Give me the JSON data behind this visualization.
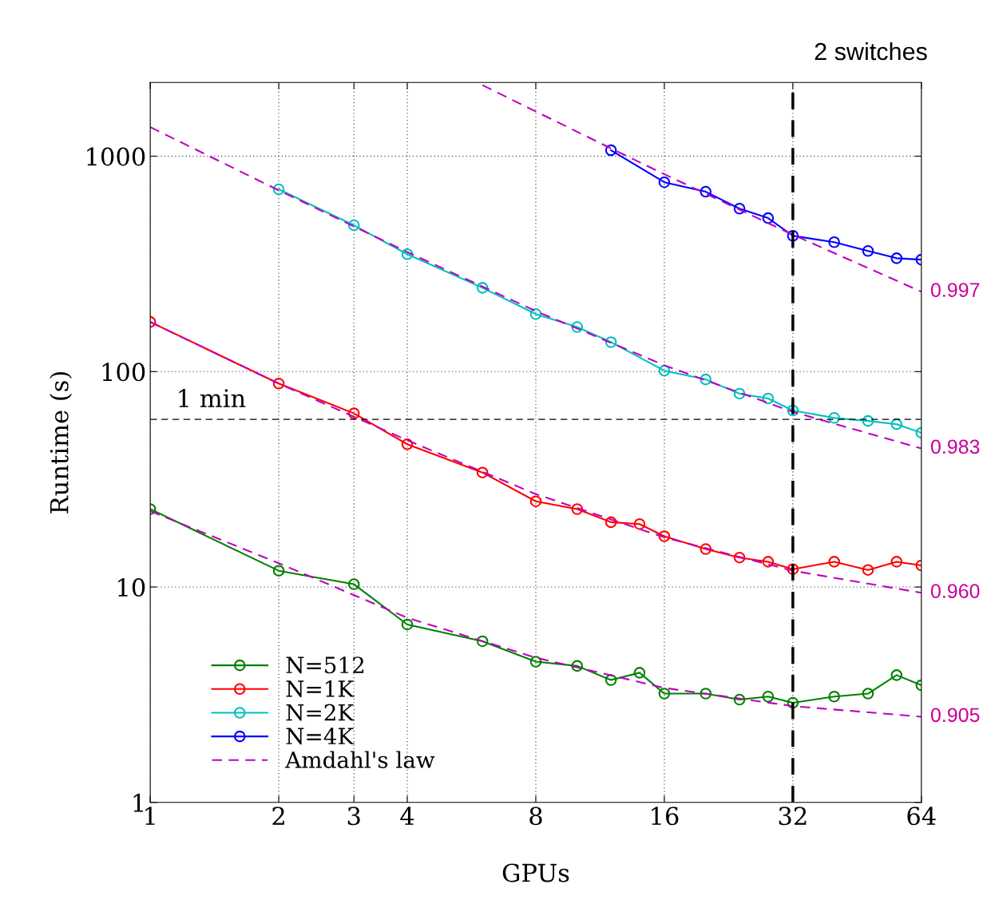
{
  "chart_data": {
    "type": "line",
    "xlabel": "GPUs",
    "ylabel": "Runtime (s)",
    "log": "xy",
    "xlim": [
      1,
      64
    ],
    "ylim": [
      1,
      2200
    ],
    "xticks": [
      1,
      2,
      3,
      4,
      8,
      16,
      32,
      64
    ],
    "yticks": [
      1,
      10,
      100,
      1000
    ],
    "grid": true,
    "legend": "bottom left",
    "marker": "circle",
    "line_style": "solid",
    "series": [
      {
        "name": "N=512",
        "color": "#008000",
        "x": [
          1,
          2,
          3,
          4,
          6,
          8,
          10,
          12,
          14,
          16,
          20,
          24,
          28,
          32,
          40,
          48,
          56,
          64
        ],
        "values": [
          23.0,
          11.9,
          10.3,
          6.7,
          5.6,
          4.5,
          4.3,
          3.7,
          4.0,
          3.2,
          3.2,
          3.0,
          3.1,
          2.9,
          3.1,
          3.2,
          3.9,
          3.5
        ]
      },
      {
        "name": "N=1K",
        "color": "#ff0000",
        "x": [
          1,
          2,
          3,
          4,
          6,
          8,
          10,
          12,
          14,
          16,
          20,
          24,
          28,
          32,
          40,
          48,
          56,
          64
        ],
        "values": [
          170,
          88,
          64,
          46,
          34,
          25,
          23,
          20,
          19.6,
          17.2,
          15.0,
          13.7,
          13.1,
          12.1,
          13.1,
          12.0,
          13.1,
          12.6
        ]
      },
      {
        "name": "N=2K",
        "color": "#00bfbf",
        "x": [
          2,
          3,
          4,
          6,
          8,
          10,
          12,
          16,
          20,
          24,
          28,
          32,
          40,
          48,
          56,
          64
        ],
        "values": [
          702,
          478,
          351,
          245,
          185,
          161,
          137,
          101,
          92,
          79,
          75,
          66,
          61,
          59,
          57,
          52
        ]
      },
      {
        "name": "N=4K",
        "color": "#0000ff",
        "x": [
          12,
          16,
          20,
          24,
          28,
          32,
          40,
          48,
          56,
          64
        ],
        "values": [
          1066,
          757,
          684,
          571,
          516,
          427,
          399,
          363,
          336,
          331
        ]
      },
      {
        "name": "Amdahl's law",
        "color": "#bf00bf",
        "marker": "none",
        "line_style": "dashed",
        "x": [
          1,
          2,
          4,
          8,
          16,
          32,
          64
        ],
        "values": [
          22.5,
          12.9,
          7.2,
          4.7,
          3.4,
          2.8,
          2.5
        ]
      },
      {
        "color": "#bf00bf",
        "marker": "none",
        "line_style": "dashed",
        "x": [
          1,
          2,
          4,
          8,
          16,
          32,
          64
        ],
        "values": [
          170,
          88,
          48,
          27,
          17,
          11.9,
          9.4
        ]
      },
      {
        "color": "#bf00bf",
        "marker": "none",
        "line_style": "dashed",
        "x": [
          1,
          2,
          4,
          8,
          16,
          32,
          64
        ],
        "values": [
          1365,
          694,
          359,
          191,
          107,
          65,
          44
        ]
      },
      {
        "color": "#bf00bf",
        "marker": "none",
        "line_style": "dashed",
        "x": [
          6,
          8,
          12,
          16,
          32,
          64
        ],
        "values": [
          2137,
          1613,
          1087,
          825,
          432,
          235
        ]
      }
    ],
    "ref_lines": [
      {
        "axis": "y",
        "value": 60,
        "label": "1 min",
        "color": "#000000",
        "line_style": "dashed"
      },
      {
        "axis": "x",
        "value": 32,
        "label": "2 switches",
        "color": "#000000",
        "line_style": "dashed"
      }
    ],
    "annotations": [
      "0.997",
      "0.983",
      "0.960",
      "0.905"
    ]
  }
}
